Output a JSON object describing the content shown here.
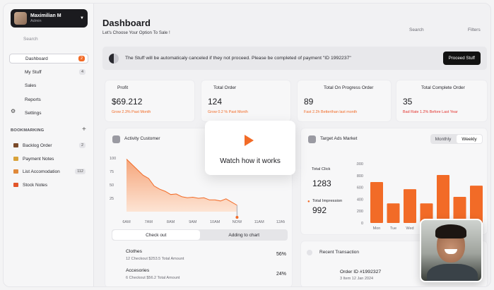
{
  "profile": {
    "name": "Maximilian M",
    "role": "Admin"
  },
  "sidebar": {
    "search": "Search",
    "items": [
      {
        "label": "Dashboard",
        "badge": "2"
      },
      {
        "label": "My Stuff",
        "badge": "4"
      },
      {
        "label": "Sales"
      },
      {
        "label": "Reports"
      },
      {
        "label": "Settings"
      }
    ],
    "bookmarking_title": "BOOKMARKING",
    "bookmarks": [
      {
        "label": "Backlog Order",
        "badge": "2"
      },
      {
        "label": "Payment Notes"
      },
      {
        "label": "List Accomodation",
        "badge": "112"
      },
      {
        "label": "Stock Notes"
      }
    ]
  },
  "header": {
    "title": "Dashboard",
    "subtitle": "Let's Choose Your Option To Sale !",
    "search": "Search",
    "filters": "Filters"
  },
  "notice": {
    "text": "The Stuff will be automaticaly canceled if they not proceed. Please be completed of payment \"ID 1992237\"",
    "button": "Proceed Stuff"
  },
  "stats": [
    {
      "label": "Profit",
      "value": "$69.212",
      "note": "Grow 2.3% Past Month"
    },
    {
      "label": "Total Order",
      "value": "124",
      "note": "Grow 0.2 % Past Month"
    },
    {
      "label": "Total On Progress Order",
      "value": "89",
      "note": "Fast 2.2h Betterthan last month"
    },
    {
      "label": "Total Complete Order",
      "value": "35",
      "note": "Bad Rate 1.2% Before Last Year"
    }
  ],
  "activity": {
    "title": "Activity Customer",
    "tabs": [
      "Check out",
      "Adding to chart"
    ],
    "categories": [
      {
        "name": "Clothes",
        "sub": "12 Checkout    $253.5 Total Amount",
        "pct": "56%"
      },
      {
        "name": "Accesories",
        "sub": "6 Checkout    $56.2 Total Amount",
        "pct": "24%"
      }
    ]
  },
  "popup": {
    "text": "Watch how it works"
  },
  "ads": {
    "title": "Target Ads Market",
    "seg": [
      "Monthly",
      "Weekly"
    ],
    "click_label": "Total Click",
    "click_value": "1283",
    "impression_label": "Total Impression",
    "impression_value": "992"
  },
  "transaction": {
    "title": "Recent Transaction",
    "order": "Order ID #1992327",
    "detail": "3 Item    12 Jan 2024"
  },
  "chart_data": [
    {
      "type": "area",
      "title": "Activity Customer",
      "x": [
        "6AM",
        "7AM",
        "8AM",
        "9AM",
        "10AM",
        "NOW",
        "11AM",
        "12AM"
      ],
      "y_ticks": [
        100,
        75,
        50,
        25
      ],
      "points": [
        [
          0,
          98
        ],
        [
          0.25,
          88
        ],
        [
          0.5,
          78
        ],
        [
          0.75,
          68
        ],
        [
          1,
          62
        ],
        [
          1.25,
          48
        ],
        [
          1.5,
          42
        ],
        [
          1.75,
          38
        ],
        [
          2,
          32
        ],
        [
          2.25,
          33
        ],
        [
          2.5,
          28
        ],
        [
          2.75,
          26
        ],
        [
          3,
          27
        ],
        [
          3.25,
          25
        ],
        [
          3.5,
          26
        ],
        [
          3.75,
          22
        ],
        [
          4,
          22
        ],
        [
          4.25,
          20
        ],
        [
          4.5,
          24
        ],
        [
          4.75,
          18
        ],
        [
          5,
          12
        ]
      ],
      "ylim": [
        0,
        100
      ],
      "color": "#f26b27"
    },
    {
      "type": "bar",
      "title": "Target Ads Market",
      "categories": [
        "Mon",
        "Tue",
        "Wed",
        "",
        "",
        "",
        ""
      ],
      "values": [
        690,
        330,
        570,
        330,
        810,
        440,
        630
      ],
      "y_ticks": [
        1000,
        800,
        600,
        400,
        200,
        0
      ],
      "ylim": [
        0,
        1000
      ],
      "color": "#f26b27"
    }
  ],
  "colors": {
    "accent": "#f26b27"
  }
}
